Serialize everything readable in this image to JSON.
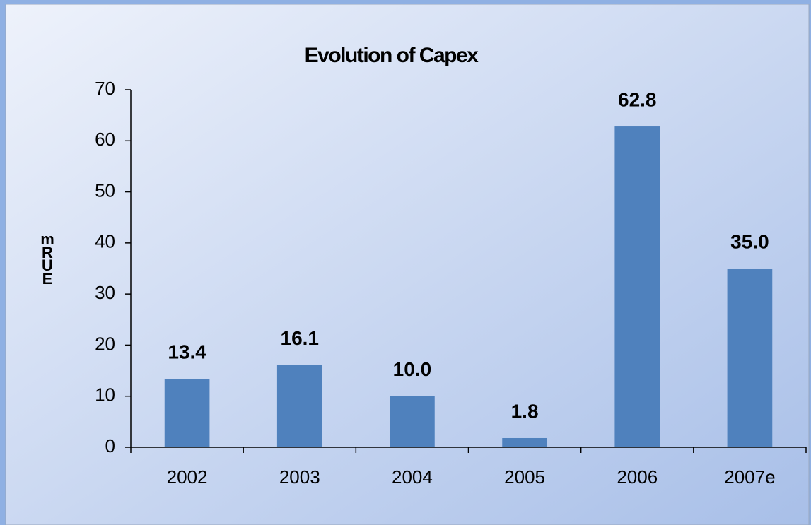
{
  "chart_data": {
    "type": "bar",
    "title": "Evolution of Capex",
    "y_label": "mRUE",
    "categories": [
      "2002",
      "2003",
      "2004",
      "2005",
      "2006",
      "2007e"
    ],
    "values": [
      13.4,
      16.1,
      10.0,
      1.8,
      62.8,
      35.0
    ],
    "value_labels": [
      "13.4",
      "16.1",
      "10.0",
      "1.8",
      "62.8",
      "35.0"
    ],
    "color": "#4f81bd",
    "ylim": [
      0,
      70
    ],
    "yticks": [
      0,
      10,
      20,
      30,
      40,
      50,
      60,
      70
    ],
    "grid": false
  }
}
